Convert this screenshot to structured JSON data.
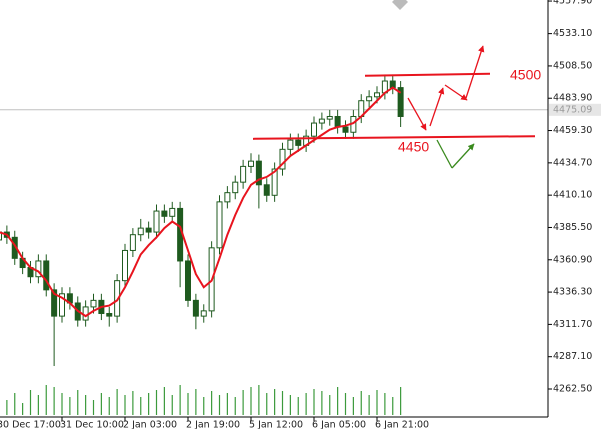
{
  "chart_data": {
    "type": "candlestick",
    "categories": [
      "30 Dec 17:00",
      null,
      null,
      null,
      null,
      null,
      null,
      null,
      "31 Dec 10:00",
      null,
      null,
      null,
      null,
      null,
      null,
      null,
      "2 Jan 03:00",
      null,
      null,
      null,
      null,
      null,
      null,
      null,
      "2 Jan 19:00",
      null,
      null,
      null,
      null,
      null,
      null,
      null,
      "5 Jan 12:00",
      null,
      null,
      null,
      null,
      null,
      null,
      null,
      "6 Jan 05:00",
      null,
      null,
      null,
      null,
      null,
      null,
      null,
      "6 Jan 21:00",
      null,
      null,
      null
    ],
    "open": [
      4376,
      4382,
      4378,
      4362,
      4355,
      4348,
      4360,
      4338,
      4318,
      4335,
      4328,
      4315,
      4325,
      4330,
      4320,
      4318,
      4345,
      4368,
      4380,
      4385,
      4382,
      4398,
      4394,
      4400,
      4360,
      4330,
      4318,
      4322,
      4370,
      4405,
      4412,
      4420,
      4432,
      4436,
      4418,
      4410,
      4430,
      4445,
      4452,
      4448,
      4455,
      4465,
      4468,
      4470,
      4462,
      4458,
      4470,
      4482,
      4485,
      4488,
      4497,
      4492
    ],
    "high": [
      4387,
      4387,
      4383,
      4367,
      4360,
      4365,
      4365,
      4343,
      4340,
      4340,
      4333,
      4330,
      4335,
      4335,
      4325,
      4350,
      4373,
      4385,
      4392,
      4390,
      4403,
      4403,
      4405,
      4405,
      4365,
      4335,
      4327,
      4375,
      4410,
      4417,
      4425,
      4437,
      4442,
      4441,
      4423,
      4435,
      4450,
      4457,
      4457,
      4460,
      4470,
      4473,
      4475,
      4475,
      4467,
      4475,
      4487,
      4490,
      4493,
      4502,
      4502,
      4497
    ],
    "low": [
      4371,
      4373,
      4357,
      4350,
      4343,
      4343,
      4333,
      4280,
      4313,
      4323,
      4310,
      4310,
      4320,
      4315,
      4310,
      4313,
      4340,
      4363,
      4375,
      4377,
      4377,
      4389,
      4389,
      4340,
      4325,
      4308,
      4313,
      4317,
      4365,
      4400,
      4407,
      4415,
      4427,
      4400,
      4405,
      4405,
      4425,
      4440,
      4443,
      4443,
      4450,
      4460,
      4463,
      4457,
      4453,
      4453,
      4465,
      4477,
      4480,
      4483,
      4487,
      4462
    ],
    "close": [
      4382,
      4378,
      4362,
      4355,
      4348,
      4360,
      4338,
      4318,
      4335,
      4328,
      4315,
      4325,
      4330,
      4320,
      4318,
      4345,
      4368,
      4380,
      4385,
      4382,
      4398,
      4394,
      4400,
      4360,
      4330,
      4318,
      4322,
      4370,
      4405,
      4412,
      4420,
      4432,
      4436,
      4418,
      4410,
      4430,
      4445,
      4452,
      4448,
      4455,
      4465,
      4468,
      4470,
      4462,
      4458,
      4470,
      4482,
      4485,
      4488,
      4497,
      4492,
      4470
    ],
    "color": "#1f5a1f",
    "moving_average": {
      "color": "#e8141e",
      "values": [
        4382,
        4380,
        4372,
        4362,
        4355,
        4352,
        4345,
        4335,
        4332,
        4328,
        4322,
        4318,
        4322,
        4325,
        4326,
        4330,
        4340,
        4352,
        4365,
        4372,
        4378,
        4385,
        4390,
        4386,
        4368,
        4350,
        4340,
        4345,
        4362,
        4380,
        4395,
        4408,
        4418,
        4422,
        4424,
        4428,
        4434,
        4440,
        4444,
        4448,
        4452,
        4456,
        4460,
        4462,
        4463,
        4465,
        4470,
        4476,
        4482,
        4488,
        4492,
        4488
      ]
    },
    "volume": {
      "color": "#3c9a3c",
      "values": [
        18,
        15,
        22,
        12,
        25,
        20,
        30,
        28,
        22,
        18,
        25,
        20,
        15,
        22,
        18,
        26,
        20,
        24,
        18,
        22,
        25,
        28,
        20,
        30,
        22,
        26,
        18,
        24,
        20,
        22,
        18,
        25,
        28,
        30,
        22,
        26,
        24,
        20,
        18,
        22,
        26,
        24,
        20,
        28,
        22,
        18,
        24,
        20,
        25,
        22,
        18,
        28
      ]
    },
    "ylim": [
      4248.8,
      4558.7
    ],
    "yticks": [
      {
        "value": 4557.9,
        "label": "4557.90"
      },
      {
        "value": 4533.1,
        "label": "4533.10"
      },
      {
        "value": 4508.5,
        "label": "4508.50"
      },
      {
        "value": 4483.9,
        "label": "4483.90"
      },
      {
        "value": 4459.3,
        "label": "4459.30"
      },
      {
        "value": 4434.7,
        "label": "4434.70"
      },
      {
        "value": 4410.1,
        "label": "4410.10"
      },
      {
        "value": 4385.5,
        "label": "4385.50"
      },
      {
        "value": 4360.9,
        "label": "4360.90"
      },
      {
        "value": 4336.3,
        "label": "4336.30"
      },
      {
        "value": 4311.7,
        "label": "4311.70"
      },
      {
        "value": 4287.1,
        "label": "4287.10"
      },
      {
        "value": 4262.5,
        "label": "4262.50"
      }
    ],
    "last_price": 4475.09,
    "levels": [
      {
        "label": "4500",
        "color": "#e8141e",
        "values": [
          4501,
          4502.5
        ]
      },
      {
        "label": "4450",
        "color": "#e8141e",
        "values": [
          4453,
          4455
        ]
      }
    ]
  }
}
